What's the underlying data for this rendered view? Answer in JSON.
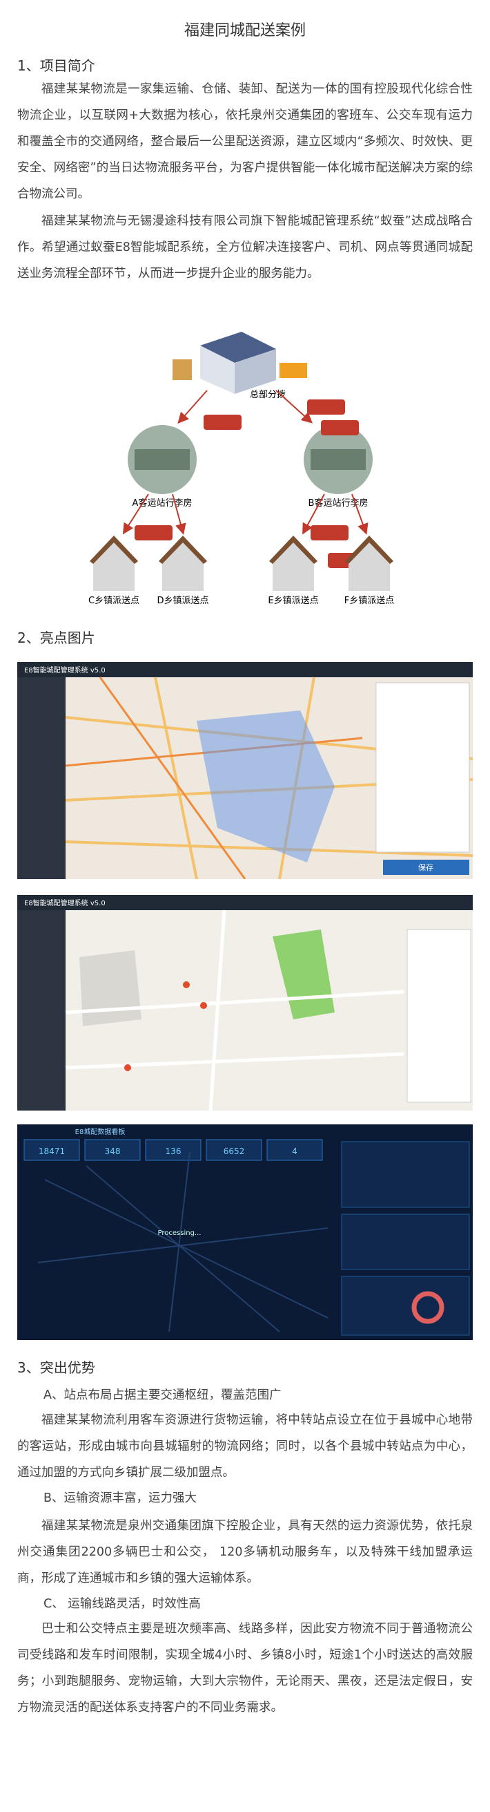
{
  "title": "福建同城配送案例",
  "sections": [
    {
      "heading": "1、项目简介",
      "paragraphs": [
        "福建某某物流是一家集运输、仓储、装卸、配送为一体的国有控股现代化综合性物流企业，以互联网+大数据为核心，依托泉州交通集团的客班车、公交车现有运力和覆盖全市的交通网络，整合最后一公里配送资源，建立区域内“多频次、时效快、更安全、网络密”的当日达物流服务平台，为客户提供智能一体化城市配送解决方案的综合物流公司。",
        "福建某某物流与无锡漫途科技有限公司旗下智能城配管理系统“蚁蚕”达成战略合作。希望通过蚁蚕E8智能城配系统，全方位解决连接客户、司机、网点等贯通同城配送业务流程全部环节，从而进一步提升企业的服务能力。"
      ]
    },
    {
      "heading": "2、亮点图片"
    },
    {
      "heading": "3、突出优势",
      "items": [
        {
          "heading": "A、站点布局占据主要交通枢纽，覆盖范围广",
          "text": "福建某某物流利用客车资源进行货物运输，将中转站点设立在位于县城中心地带的客运站，形成由城市向县城辐射的物流网络；同时，以各个县城中转站点为中心，通过加盟的方式向乡镇扩展二级加盟点。"
        },
        {
          "heading": "B、运输资源丰富，运力强大",
          "text": "福建某某物流是泉州交通集团旗下控股企业，具有天然的运力资源优势，依托泉州交通集团2200多辆巴士和公交，  120多辆机动服务车，以及特殊干线加盟承运商，形成了连通城市和乡镇的强大运输体系。"
        },
        {
          "heading": "C、 运输线路灵活，时效性高",
          "text": "巴士和公交特点主要是班次频率高、线路多样，因此安方物流不同于普通物流公司受线路和发车时间限制，实现全城4小时、乡镇8小时，短途1个小时送达的高效服务；小到跑腿服务、宠物运输，大到大宗物件，无论雨天、黑夜，还是法定假日，安方物流灵活的配送体系支持客户的不同业务需求。"
        }
      ]
    }
  ],
  "diagram": {
    "hub": "总部分拨",
    "stations": [
      "A客运站行李房",
      "B客运站行李房"
    ],
    "points": [
      "C乡镇派送点",
      "D乡镇派送点",
      "E乡镇派送点",
      "F乡镇派送点"
    ]
  },
  "screenshots": [
    {
      "system_title": "E8智能城配管理系统 v5.0",
      "button": "保存"
    },
    {
      "system_title": "E8智能城配管理系统 v5.0"
    },
    {
      "title": "E8城配数据看板",
      "stats": [
        18471,
        348,
        136,
        6652,
        4
      ],
      "status": "Processing..."
    }
  ]
}
